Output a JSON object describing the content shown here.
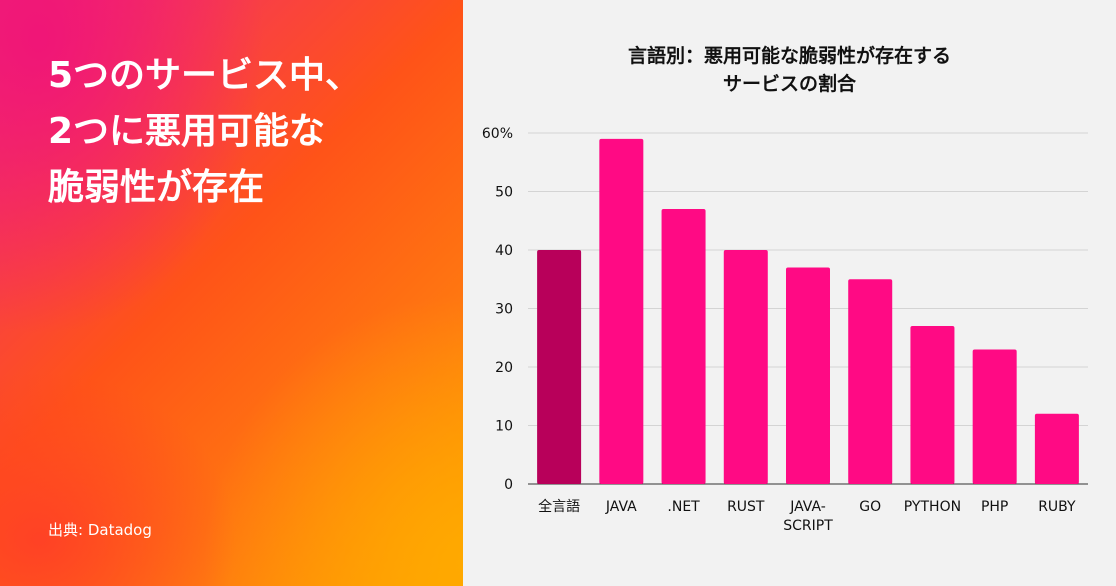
{
  "headline": [
    "5つのサービス中、",
    "2つに悪用可能な",
    "脆弱性が存在"
  ],
  "source": "出典: Datadog",
  "colors": {
    "highlight": "#b8005a",
    "bar": "#ff0a84",
    "grid": "#d4d4d4"
  },
  "chart_data": {
    "type": "bar",
    "title": [
      "言語別：悪用可能な脆弱性が存在する",
      "サービスの割合"
    ],
    "categories": [
      [
        "全言語"
      ],
      [
        "JAVA"
      ],
      [
        ".NET"
      ],
      [
        "RUST"
      ],
      [
        "JAVA-",
        "SCRIPT"
      ],
      [
        "GO"
      ],
      [
        "PYTHON"
      ],
      [
        "PHP"
      ],
      [
        "RUBY"
      ]
    ],
    "values": [
      40,
      59,
      47,
      40,
      37,
      35,
      27,
      23,
      12
    ],
    "highlight_index": 0,
    "yticks": [
      "0",
      "10",
      "20",
      "30",
      "40",
      "50",
      "60%"
    ],
    "ylim": [
      0,
      60
    ],
    "grid": true
  }
}
